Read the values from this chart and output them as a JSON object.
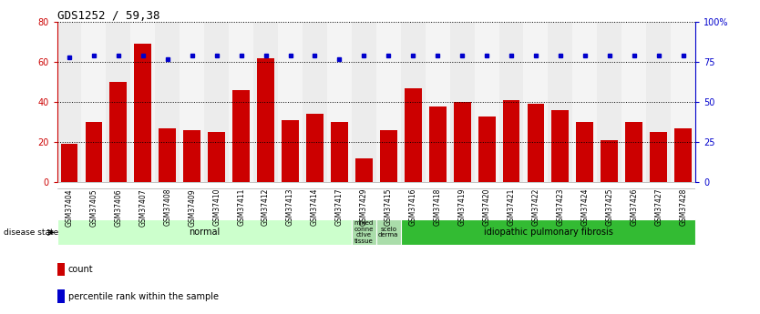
{
  "title": "GDS1252 / 59,38",
  "samples": [
    "GSM37404",
    "GSM37405",
    "GSM37406",
    "GSM37407",
    "GSM37408",
    "GSM37409",
    "GSM37410",
    "GSM37411",
    "GSM37412",
    "GSM37413",
    "GSM37414",
    "GSM37417",
    "GSM37429",
    "GSM37415",
    "GSM37416",
    "GSM37418",
    "GSM37419",
    "GSM37420",
    "GSM37421",
    "GSM37422",
    "GSM37423",
    "GSM37424",
    "GSM37425",
    "GSM37426",
    "GSM37427",
    "GSM37428"
  ],
  "counts": [
    19,
    30,
    50,
    69,
    27,
    26,
    25,
    46,
    62,
    31,
    34,
    30,
    12,
    26,
    47,
    38,
    40,
    33,
    41,
    39,
    36,
    30,
    21,
    30,
    25,
    27
  ],
  "percentile": [
    78,
    79,
    79,
    79,
    77,
    79,
    79,
    79,
    79,
    79,
    79,
    77,
    79,
    79,
    79,
    79,
    79,
    79,
    79,
    79,
    79,
    79,
    79,
    79,
    79,
    79
  ],
  "bar_color": "#cc0000",
  "dot_color": "#0000cc",
  "bg_color": "#ffffff",
  "left_axis_color": "#cc0000",
  "right_axis_color": "#0000cc",
  "ylim_left": [
    0,
    80
  ],
  "ylim_right": [
    0,
    100
  ],
  "yticks_left": [
    0,
    20,
    40,
    60,
    80
  ],
  "yticks_right": [
    0,
    25,
    50,
    75,
    100
  ],
  "disease_groups": [
    {
      "label": "normal",
      "start": 0,
      "end": 12,
      "color": "#ccffcc",
      "text_color": "#006600"
    },
    {
      "label": "mixed\nconne\nctive\ntissue",
      "start": 12,
      "end": 13,
      "color": "#aaddaa",
      "text_color": "#006600"
    },
    {
      "label": "scelo\nderma",
      "start": 13,
      "end": 14,
      "color": "#aaddaa",
      "text_color": "#006600"
    },
    {
      "label": "idiopathic pulmonary fibrosis",
      "start": 14,
      "end": 26,
      "color": "#33bb33",
      "text_color": "#003300"
    }
  ],
  "disease_state_label": "disease state",
  "legend_items": [
    {
      "label": "count",
      "color": "#cc0000"
    },
    {
      "label": "percentile rank within the sample",
      "color": "#0000cc"
    }
  ],
  "col_colors": [
    "#e8e8e8",
    "#f0f0f0"
  ]
}
